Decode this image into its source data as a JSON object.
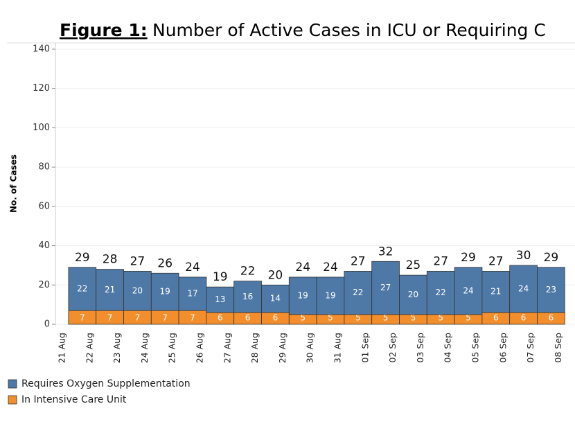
{
  "chart_data": {
    "type": "stacked_bar",
    "title": "Number of Active Cases in ICU or Requiring C",
    "title_prefix": "Figure 1:",
    "y_label": "No. of Cases",
    "categories": [
      "21 Aug",
      "22 Aug",
      "23 Aug",
      "24 Aug",
      "25 Aug",
      "26 Aug",
      "27 Aug",
      "28 Aug",
      "29 Aug",
      "30 Aug",
      "31 Aug",
      "01 Sep",
      "02 Sep",
      "03 Sep",
      "04 Sep",
      "05 Sep",
      "06 Sep",
      "07 Sep",
      "08 Sep"
    ],
    "series": [
      {
        "name": "In Intensive Care Unit",
        "color": "#f28e2b",
        "values": [
          null,
          7,
          7,
          7,
          7,
          7,
          6,
          6,
          6,
          5,
          5,
          5,
          5,
          5,
          5,
          5,
          6,
          6,
          6
        ]
      },
      {
        "name": "Requires Oxygen Supplementation",
        "color": "#4e79a7",
        "values": [
          null,
          22,
          21,
          20,
          19,
          17,
          13,
          16,
          14,
          19,
          19,
          22,
          27,
          20,
          22,
          24,
          21,
          24,
          23
        ]
      }
    ],
    "totals": [
      null,
      29,
      28,
      27,
      26,
      24,
      19,
      22,
      20,
      24,
      24,
      27,
      32,
      25,
      27,
      29,
      27,
      30,
      29
    ],
    "ylim": [
      0,
      140
    ],
    "yticks": [
      0,
      20,
      40,
      60,
      80,
      100,
      120,
      140
    ],
    "grid": true
  }
}
